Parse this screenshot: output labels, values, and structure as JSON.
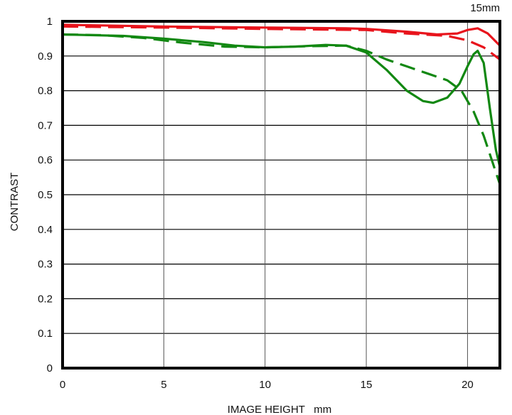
{
  "chart_data": {
    "type": "line",
    "title": "15mm",
    "xlabel": "IMAGE HEIGHT   mm",
    "ylabel": "CONTRAST",
    "xlim": [
      0,
      21.6
    ],
    "ylim": [
      0,
      1
    ],
    "xticks": [
      0,
      5,
      10,
      15,
      20
    ],
    "xtick_labels": [
      "0",
      "5",
      "10",
      "15",
      "20"
    ],
    "yticks": [
      0,
      0.1,
      0.2,
      0.3,
      0.4,
      0.5,
      0.6,
      0.7,
      0.8,
      0.9,
      1
    ],
    "ytick_labels": [
      "0",
      "0.1",
      "0.2",
      "0.3",
      "0.4",
      "0.5",
      "0.6",
      "0.7",
      "0.8",
      "0.9",
      "1"
    ],
    "grid": true,
    "legend": "none",
    "series": [
      {
        "color": "#e8141c",
        "dash": "solid",
        "points": [
          [
            0,
            0.99
          ],
          [
            5,
            0.985
          ],
          [
            10,
            0.982
          ],
          [
            14,
            0.98
          ],
          [
            15,
            0.978
          ],
          [
            17,
            0.97
          ],
          [
            18.5,
            0.962
          ],
          [
            19.5,
            0.965
          ],
          [
            20,
            0.975
          ],
          [
            20.5,
            0.98
          ],
          [
            21,
            0.965
          ],
          [
            21.6,
            0.93
          ]
        ]
      },
      {
        "color": "#e8141c",
        "dash": "dashed",
        "points": [
          [
            0,
            0.985
          ],
          [
            5,
            0.982
          ],
          [
            10,
            0.978
          ],
          [
            15,
            0.975
          ],
          [
            17,
            0.965
          ],
          [
            19,
            0.958
          ],
          [
            20,
            0.945
          ],
          [
            20.8,
            0.925
          ],
          [
            21.6,
            0.89
          ]
        ]
      },
      {
        "color": "#128812",
        "dash": "solid",
        "points": [
          [
            0,
            0.962
          ],
          [
            3,
            0.958
          ],
          [
            5,
            0.95
          ],
          [
            7,
            0.94
          ],
          [
            8.5,
            0.93
          ],
          [
            10,
            0.925
          ],
          [
            11.5,
            0.927
          ],
          [
            13,
            0.932
          ],
          [
            14,
            0.93
          ],
          [
            15,
            0.91
          ],
          [
            16,
            0.86
          ],
          [
            17,
            0.8
          ],
          [
            17.8,
            0.77
          ],
          [
            18.3,
            0.765
          ],
          [
            19,
            0.78
          ],
          [
            19.6,
            0.82
          ],
          [
            20,
            0.87
          ],
          [
            20.3,
            0.905
          ],
          [
            20.5,
            0.915
          ],
          [
            20.8,
            0.88
          ],
          [
            21.1,
            0.75
          ],
          [
            21.4,
            0.63
          ],
          [
            21.6,
            0.58
          ]
        ]
      },
      {
        "color": "#128812",
        "dash": "dashed",
        "points": [
          [
            0,
            0.962
          ],
          [
            2,
            0.96
          ],
          [
            4,
            0.952
          ],
          [
            6,
            0.938
          ],
          [
            8,
            0.927
          ],
          [
            10,
            0.925
          ],
          [
            12,
            0.928
          ],
          [
            14,
            0.93
          ],
          [
            15,
            0.915
          ],
          [
            16,
            0.89
          ],
          [
            17,
            0.87
          ],
          [
            18,
            0.85
          ],
          [
            19,
            0.83
          ],
          [
            19.7,
            0.8
          ],
          [
            20.3,
            0.74
          ],
          [
            20.8,
            0.67
          ],
          [
            21.2,
            0.6
          ],
          [
            21.6,
            0.53
          ]
        ]
      }
    ]
  }
}
